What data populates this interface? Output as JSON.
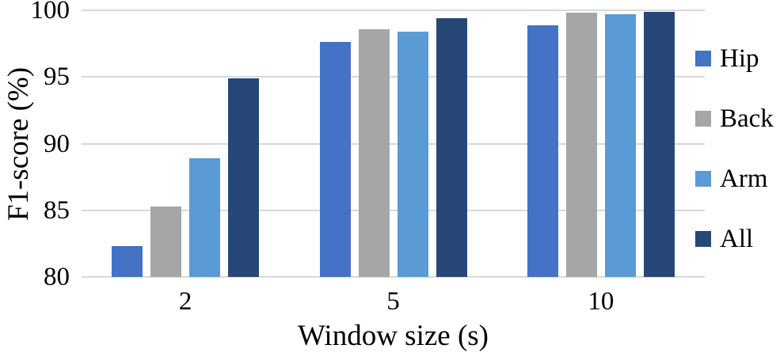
{
  "chart_data": {
    "type": "bar",
    "title": "",
    "xlabel": "Window size (s)",
    "ylabel": "F1-score (%)",
    "categories": [
      "2",
      "5",
      "10"
    ],
    "series": [
      {
        "name": "Hip",
        "color": "#4472C4",
        "values": [
          82.3,
          97.6,
          98.9
        ]
      },
      {
        "name": "Back",
        "color": "#A6A6A6",
        "values": [
          85.3,
          98.6,
          99.8
        ]
      },
      {
        "name": "Arm",
        "color": "#5B9BD5",
        "values": [
          88.9,
          98.4,
          99.7
        ]
      },
      {
        "name": "All",
        "color": "#264778",
        "values": [
          94.9,
          99.4,
          99.9
        ]
      }
    ],
    "ylim": [
      80,
      100
    ],
    "yticks": [
      80,
      85,
      90,
      95,
      100
    ],
    "grid": true,
    "gridline_color": "#D9D9D9",
    "legend_position": "right",
    "text_color": "#000000",
    "background_color": "#FFFFFF"
  }
}
